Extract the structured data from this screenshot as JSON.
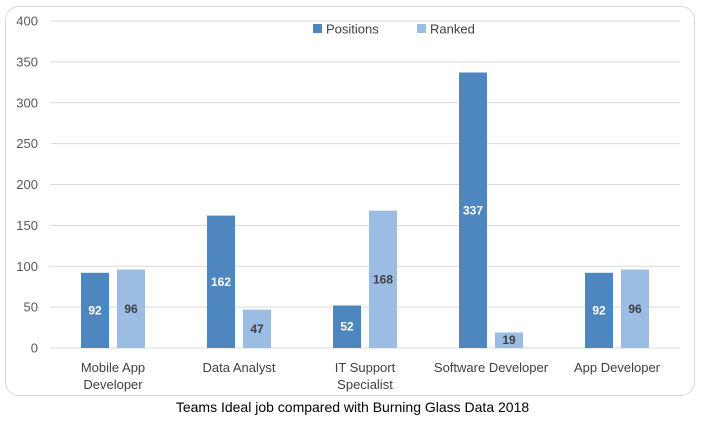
{
  "caption": "Teams Ideal job compared with Burning Glass Data 2018",
  "chart_data": {
    "type": "bar",
    "title": "",
    "xlabel": "",
    "ylabel": "",
    "ylim": [
      0,
      400
    ],
    "yticks": [
      0,
      50,
      100,
      150,
      200,
      250,
      300,
      350,
      400
    ],
    "grid": true,
    "legend_position": "top-center",
    "categories": [
      [
        "Mobile App",
        "Developer"
      ],
      [
        "Data Analyst"
      ],
      [
        "IT Support",
        "Specialist"
      ],
      [
        "Software Developer"
      ],
      [
        "App Developer"
      ]
    ],
    "series": [
      {
        "name": "Positions",
        "color": "#4e86c0",
        "label_color": "#ffffff",
        "values": [
          92,
          162,
          52,
          337,
          92
        ]
      },
      {
        "name": "Ranked",
        "color": "#9bbde3",
        "label_color": "#404040",
        "values": [
          96,
          47,
          168,
          19,
          96
        ]
      }
    ],
    "gridline_color": "#d9d9d9"
  }
}
